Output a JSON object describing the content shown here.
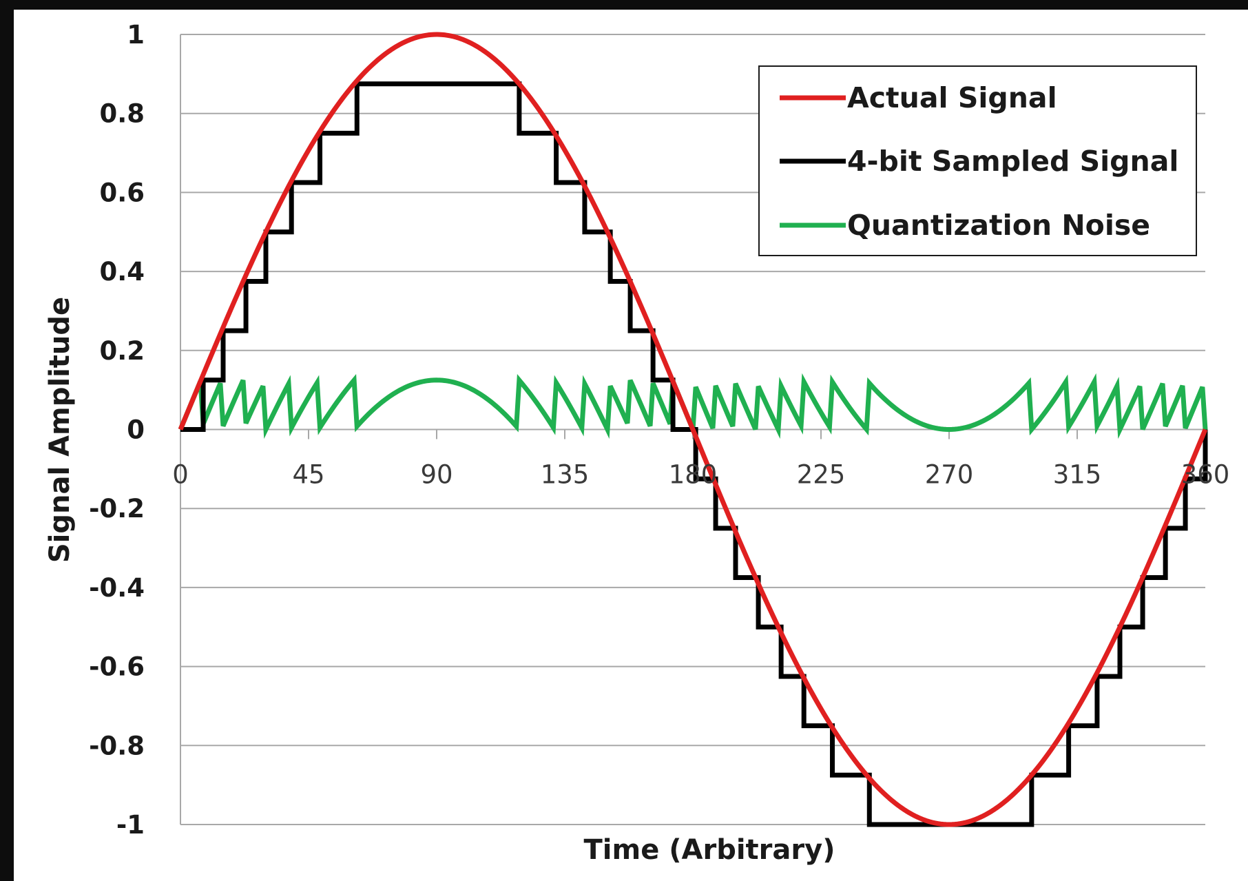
{
  "chart_data": {
    "type": "line",
    "xlabel": "Time (Arbitrary)",
    "ylabel": "Signal Amplitude",
    "xlim": [
      0,
      360
    ],
    "ylim": [
      -1,
      1
    ],
    "x_ticks": [
      "0",
      "45",
      "90",
      "135",
      "180",
      "225",
      "270",
      "315",
      "360"
    ],
    "y_ticks": [
      "1",
      "0.8",
      "0.6",
      "0.4",
      "0.2",
      "0",
      "-0.2",
      "-0.4",
      "-0.6",
      "-0.8",
      "-1"
    ],
    "grid": "horizontal",
    "legend_position": "top-right",
    "sample_step_deg": 1,
    "quantization_bits": 4,
    "series": [
      {
        "name": "Actual Signal",
        "color": "#e02020",
        "kind": "sine",
        "amplitude": 1,
        "period_deg": 360
      },
      {
        "name": "4-bit Sampled Signal",
        "color": "#000000",
        "kind": "step",
        "step_size": 0.125,
        "levels_visible": [
          -1,
          -0.875,
          -0.75,
          -0.625,
          -0.5,
          -0.375,
          -0.25,
          -0.125,
          0,
          0.125,
          0.25,
          0.375,
          0.5,
          0.625,
          0.75,
          0.875
        ]
      },
      {
        "name": "Quantization Noise",
        "color": "#20b050",
        "kind": "sawtooth",
        "range": [
          0,
          0.125
        ]
      }
    ]
  }
}
